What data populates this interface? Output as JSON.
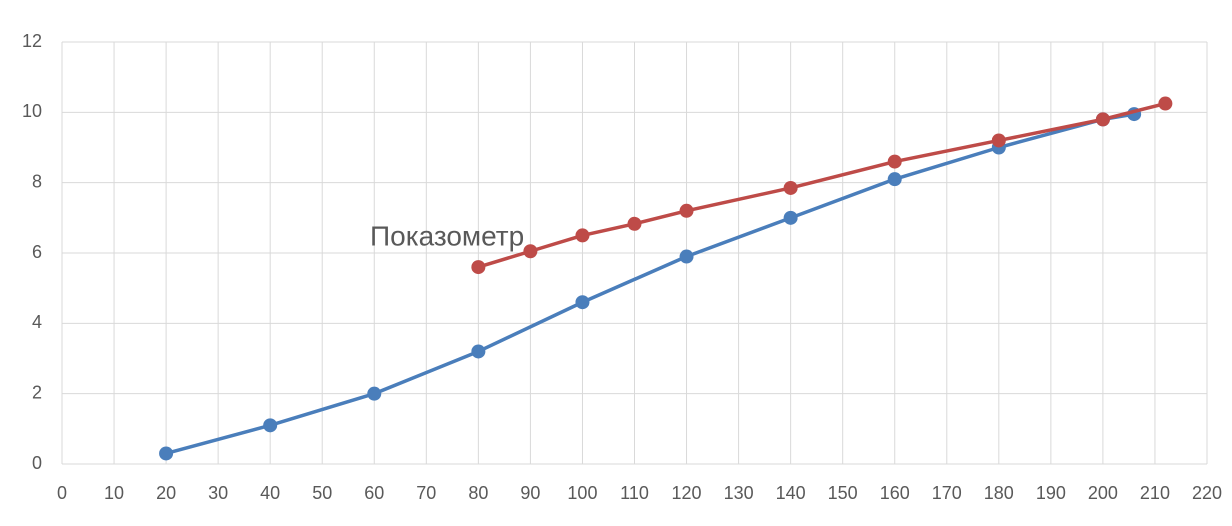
{
  "chart_data": {
    "type": "line",
    "annotation": "Показометр",
    "series": [
      {
        "color": "#4a7ebb",
        "x": [
          20,
          40,
          60,
          80,
          100,
          120,
          140,
          160,
          180,
          200,
          206
        ],
        "values": [
          0.3,
          1.1,
          2.0,
          3.2,
          4.6,
          5.9,
          7.0,
          8.1,
          9.0,
          9.8,
          9.95
        ]
      },
      {
        "color": "#be4b48",
        "x": [
          80,
          90,
          100,
          110,
          120,
          140,
          160,
          180,
          200,
          212
        ],
        "values": [
          5.6,
          6.05,
          6.5,
          6.83,
          7.2,
          7.85,
          8.6,
          9.2,
          9.8,
          10.25
        ]
      }
    ],
    "xlim": [
      0,
      220
    ],
    "xticks": [
      0,
      10,
      20,
      30,
      40,
      50,
      60,
      70,
      80,
      90,
      100,
      110,
      120,
      130,
      140,
      150,
      160,
      170,
      180,
      190,
      200,
      210,
      220
    ],
    "ylim": [
      0,
      12
    ],
    "yticks": [
      0,
      2,
      4,
      6,
      8,
      10,
      12
    ],
    "grid": true
  }
}
